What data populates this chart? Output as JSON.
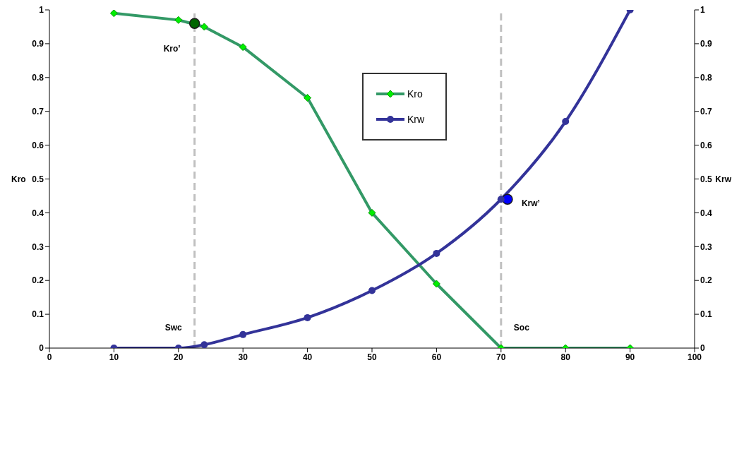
{
  "chart_data": {
    "type": "line",
    "ylabel": "Kro",
    "y2label": "Krw",
    "xlim": [
      0,
      100
    ],
    "xticks": [
      0,
      10,
      20,
      30,
      40,
      50,
      60,
      70,
      80,
      90,
      100
    ],
    "ylim": [
      0,
      1
    ],
    "yticks": [
      0,
      0.1,
      0.2,
      0.3,
      0.4,
      0.5,
      0.6,
      0.7,
      0.8,
      0.9,
      1
    ],
    "y2lim": [
      0,
      1
    ],
    "y2ticks": [
      0,
      0.1,
      0.2,
      0.3,
      0.4,
      0.5,
      0.6,
      0.7,
      0.8,
      0.9,
      1
    ],
    "grid": false,
    "legend": "top",
    "series": [
      {
        "name": "Kro",
        "color": "#339966",
        "marker": "diamond",
        "x": [
          10,
          20,
          24,
          30,
          40,
          50,
          60,
          70,
          80,
          90
        ],
        "values": [
          0.99,
          0.97,
          0.95,
          0.89,
          0.74,
          0.4,
          0.19,
          0,
          0,
          0
        ]
      },
      {
        "name": "Krw",
        "color": "#333399",
        "marker": "circle",
        "axis": "y2",
        "x": [
          10,
          20,
          24,
          30,
          40,
          50,
          60,
          70,
          80,
          90
        ],
        "values": [
          0,
          0,
          0.01,
          0.04,
          0.09,
          0.17,
          0.28,
          0.44,
          0.67,
          1.0
        ]
      },
      {
        "type": "scatter",
        "color": "#006600",
        "marker": "circle",
        "x": [
          22.5
        ],
        "values": [
          0.96
        ]
      },
      {
        "type": "scatter",
        "color": "#0000ff",
        "marker": "circle",
        "axis": "y2",
        "x": [
          71
        ],
        "values": [
          0.44
        ]
      }
    ],
    "ref_lines": [
      {
        "axis": "x",
        "value": 22.5,
        "label": "Swc",
        "color": "#c0c0c0",
        "line_style": "dashed"
      },
      {
        "axis": "x",
        "value": 70,
        "label": "Soc",
        "color": "#c0c0c0",
        "line_style": "dashed"
      }
    ],
    "annotations": [
      {
        "text": "Kro’",
        "x": 22.5,
        "y": 0.96
      },
      {
        "text": "Krw’",
        "x": 71,
        "y": 0.44
      }
    ]
  }
}
